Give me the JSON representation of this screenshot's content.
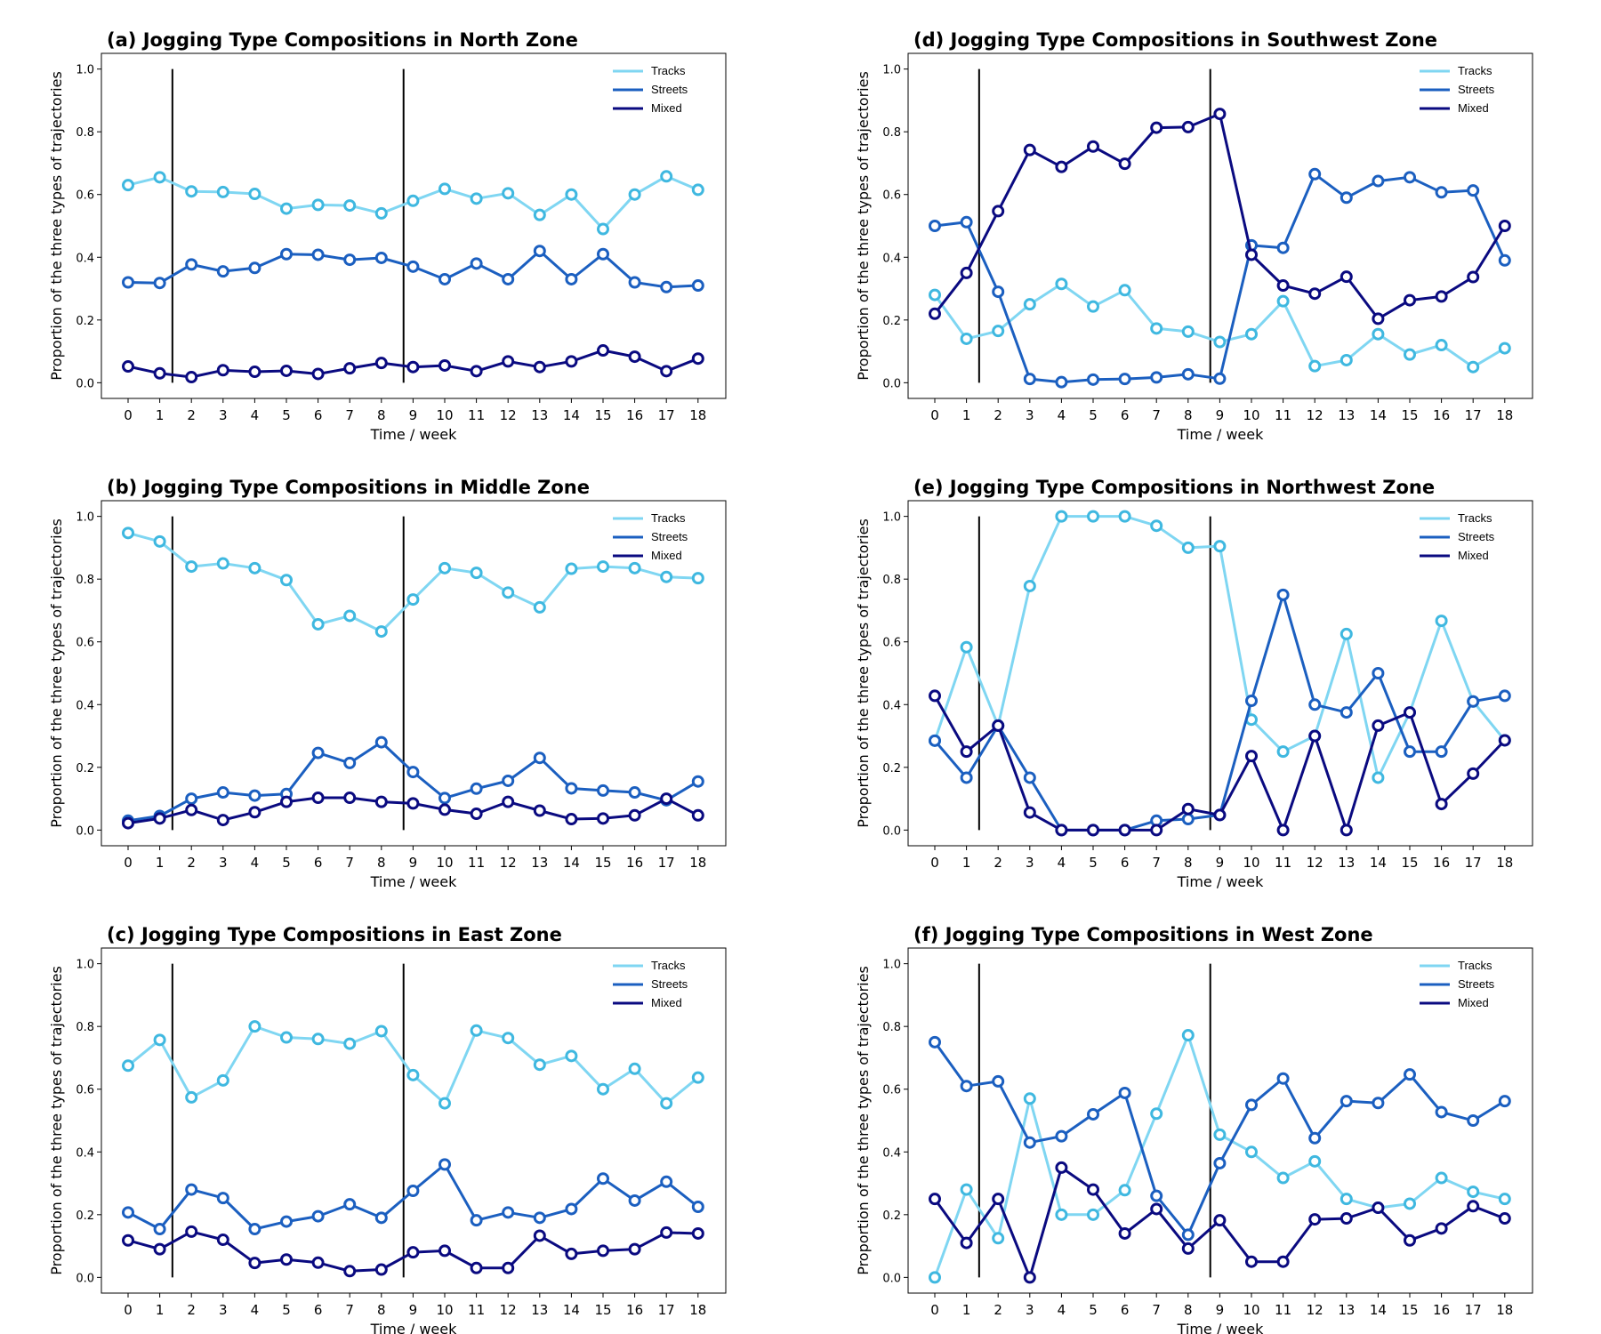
{
  "figure": {
    "xlabel": "Time / week",
    "ylabel": "Proportion of the three types of trajectories",
    "x_ticks": [
      "0",
      "1",
      "2",
      "3",
      "4",
      "5",
      "6",
      "7",
      "8",
      "9",
      "10",
      "11",
      "12",
      "13",
      "14",
      "15",
      "16",
      "17",
      "18"
    ],
    "y_ticks": [
      "0.0",
      "0.2",
      "0.4",
      "0.6",
      "0.8",
      "1.0"
    ],
    "legend_labels": [
      "Tracks",
      "Streets",
      "Mixed"
    ]
  },
  "colors": {
    "tracks_line": "#7fd6f2",
    "tracks_marker": "#3fb8e0",
    "streets": "#1b5fc0",
    "mixed": "#0a0a80",
    "vline": "#000000"
  },
  "chart_data": [
    {
      "panel": "a",
      "type": "line",
      "title_prefix": "(a)",
      "title": "Jogging Type Compositions in North Zone",
      "xlabel": "Time / week",
      "ylabel": "Proportion of the three types of trajectories",
      "x": [
        0,
        1,
        2,
        3,
        4,
        5,
        6,
        7,
        8,
        9,
        10,
        11,
        12,
        13,
        14,
        15,
        16,
        17,
        18
      ],
      "ylim": [
        -0.05,
        1.05
      ],
      "vlines": [
        1.4,
        8.7
      ],
      "legend": "top-right",
      "series": [
        {
          "name": "Tracks",
          "values": [
            0.63,
            0.655,
            0.61,
            0.608,
            0.602,
            0.555,
            0.567,
            0.565,
            0.54,
            0.58,
            0.618,
            0.587,
            0.604,
            0.535,
            0.6,
            0.49,
            0.6,
            0.658,
            0.615
          ]
        },
        {
          "name": "Streets",
          "values": [
            0.32,
            0.318,
            0.377,
            0.355,
            0.366,
            0.41,
            0.408,
            0.392,
            0.398,
            0.37,
            0.33,
            0.38,
            0.33,
            0.42,
            0.33,
            0.41,
            0.32,
            0.305,
            0.31
          ]
        },
        {
          "name": "Mixed",
          "values": [
            0.052,
            0.03,
            0.018,
            0.04,
            0.035,
            0.038,
            0.028,
            0.046,
            0.063,
            0.05,
            0.055,
            0.037,
            0.068,
            0.05,
            0.068,
            0.103,
            0.083,
            0.037,
            0.077
          ]
        }
      ]
    },
    {
      "panel": "b",
      "type": "line",
      "title_prefix": "(b)",
      "title": "Jogging Type Compositions in Middle Zone",
      "xlabel": "Time / week",
      "ylabel": "Proportion of the three types of trajectories",
      "x": [
        0,
        1,
        2,
        3,
        4,
        5,
        6,
        7,
        8,
        9,
        10,
        11,
        12,
        13,
        14,
        15,
        16,
        17,
        18
      ],
      "ylim": [
        -0.05,
        1.05
      ],
      "vlines": [
        1.4,
        8.7
      ],
      "legend": "top-right",
      "series": [
        {
          "name": "Tracks",
          "values": [
            0.947,
            0.92,
            0.84,
            0.85,
            0.835,
            0.797,
            0.656,
            0.683,
            0.633,
            0.735,
            0.835,
            0.82,
            0.757,
            0.71,
            0.833,
            0.84,
            0.835,
            0.807,
            0.803
          ]
        },
        {
          "name": "Streets",
          "values": [
            0.03,
            0.045,
            0.1,
            0.12,
            0.11,
            0.115,
            0.246,
            0.214,
            0.28,
            0.185,
            0.102,
            0.132,
            0.157,
            0.23,
            0.133,
            0.126,
            0.12,
            0.095,
            0.155
          ]
        },
        {
          "name": "Mixed",
          "values": [
            0.022,
            0.037,
            0.064,
            0.032,
            0.057,
            0.09,
            0.103,
            0.103,
            0.09,
            0.085,
            0.065,
            0.052,
            0.09,
            0.062,
            0.035,
            0.037,
            0.047,
            0.1,
            0.047
          ]
        }
      ]
    },
    {
      "panel": "c",
      "type": "line",
      "title_prefix": "(c)",
      "title": "Jogging Type Compositions in East Zone",
      "xlabel": "Time / week",
      "ylabel": "Proportion of the three types of trajectories",
      "x": [
        0,
        1,
        2,
        3,
        4,
        5,
        6,
        7,
        8,
        9,
        10,
        11,
        12,
        13,
        14,
        15,
        16,
        17,
        18
      ],
      "ylim": [
        -0.05,
        1.05
      ],
      "vlines": [
        1.4,
        8.7
      ],
      "legend": "top-right",
      "series": [
        {
          "name": "Tracks",
          "values": [
            0.675,
            0.757,
            0.574,
            0.628,
            0.8,
            0.765,
            0.76,
            0.745,
            0.785,
            0.645,
            0.555,
            0.787,
            0.763,
            0.678,
            0.706,
            0.6,
            0.665,
            0.555,
            0.637
          ]
        },
        {
          "name": "Streets",
          "values": [
            0.207,
            0.154,
            0.28,
            0.253,
            0.154,
            0.178,
            0.195,
            0.233,
            0.19,
            0.276,
            0.36,
            0.182,
            0.207,
            0.19,
            0.218,
            0.315,
            0.245,
            0.305,
            0.225
          ]
        },
        {
          "name": "Mixed",
          "values": [
            0.118,
            0.09,
            0.146,
            0.12,
            0.046,
            0.057,
            0.047,
            0.02,
            0.025,
            0.08,
            0.085,
            0.03,
            0.03,
            0.133,
            0.075,
            0.085,
            0.09,
            0.143,
            0.14
          ]
        }
      ]
    },
    {
      "panel": "d",
      "type": "line",
      "title_prefix": "(d)",
      "title": "Jogging Type Compositions in Southwest Zone",
      "xlabel": "Time / week",
      "ylabel": "Proportion of the three types of trajectories",
      "x": [
        0,
        1,
        2,
        3,
        4,
        5,
        6,
        7,
        8,
        9,
        10,
        11,
        12,
        13,
        14,
        15,
        16,
        17,
        18
      ],
      "ylim": [
        -0.05,
        1.05
      ],
      "vlines": [
        1.4,
        8.7
      ],
      "legend": "top-right",
      "series": [
        {
          "name": "Tracks",
          "values": [
            0.28,
            0.14,
            0.165,
            0.25,
            0.315,
            0.243,
            0.295,
            0.173,
            0.163,
            0.13,
            0.155,
            0.26,
            0.053,
            0.072,
            0.155,
            0.09,
            0.12,
            0.05,
            0.11
          ]
        },
        {
          "name": "Streets",
          "values": [
            0.5,
            0.512,
            0.29,
            0.012,
            0.002,
            0.01,
            0.012,
            0.017,
            0.027,
            0.013,
            0.438,
            0.43,
            0.665,
            0.59,
            0.643,
            0.655,
            0.607,
            0.613,
            0.39
          ]
        },
        {
          "name": "Mixed",
          "values": [
            0.22,
            0.35,
            0.547,
            0.742,
            0.688,
            0.753,
            0.698,
            0.813,
            0.815,
            0.857,
            0.408,
            0.31,
            0.284,
            0.338,
            0.204,
            0.263,
            0.275,
            0.337,
            0.5
          ]
        }
      ]
    },
    {
      "panel": "e",
      "type": "line",
      "title_prefix": "(e)",
      "title": "Jogging Type Compositions in Northwest Zone",
      "xlabel": "Time / week",
      "ylabel": "Proportion of the three types of trajectories",
      "x": [
        0,
        1,
        2,
        3,
        4,
        5,
        6,
        7,
        8,
        9,
        10,
        11,
        12,
        13,
        14,
        15,
        16,
        17,
        18
      ],
      "ylim": [
        -0.05,
        1.05
      ],
      "vlines": [
        1.4,
        8.7
      ],
      "legend": "top-right",
      "series": [
        {
          "name": "Tracks",
          "values": [
            0.285,
            0.583,
            0.333,
            0.778,
            1.0,
            1.0,
            1.0,
            0.97,
            0.9,
            0.905,
            0.352,
            0.25,
            0.3,
            0.625,
            0.167,
            0.375,
            0.667,
            0.41,
            0.286
          ]
        },
        {
          "name": "Streets",
          "values": [
            0.285,
            0.167,
            0.333,
            0.167,
            0.0,
            0.0,
            0.0,
            0.03,
            0.035,
            0.048,
            0.412,
            0.75,
            0.4,
            0.375,
            0.5,
            0.25,
            0.25,
            0.41,
            0.428
          ]
        },
        {
          "name": "Mixed",
          "values": [
            0.428,
            0.25,
            0.333,
            0.056,
            0.0,
            0.0,
            0.0,
            0.0,
            0.067,
            0.048,
            0.236,
            0.0,
            0.3,
            0.0,
            0.333,
            0.375,
            0.083,
            0.18,
            0.286
          ]
        }
      ]
    },
    {
      "panel": "f",
      "type": "line",
      "title_prefix": "(f)",
      "title": "Jogging Type Compositions in West Zone",
      "xlabel": "Time / week",
      "ylabel": "Proportion of the three types of trajectories",
      "x": [
        0,
        1,
        2,
        3,
        4,
        5,
        6,
        7,
        8,
        9,
        10,
        11,
        12,
        13,
        14,
        15,
        16,
        17,
        18
      ],
      "ylim": [
        -0.05,
        1.05
      ],
      "vlines": [
        1.4,
        8.7
      ],
      "legend": "top-right",
      "series": [
        {
          "name": "Tracks",
          "values": [
            0.0,
            0.28,
            0.125,
            0.57,
            0.2,
            0.2,
            0.278,
            0.522,
            0.772,
            0.455,
            0.4,
            0.317,
            0.37,
            0.25,
            0.222,
            0.235,
            0.317,
            0.273,
            0.25
          ]
        },
        {
          "name": "Streets",
          "values": [
            0.75,
            0.61,
            0.625,
            0.43,
            0.45,
            0.52,
            0.588,
            0.26,
            0.136,
            0.364,
            0.55,
            0.634,
            0.444,
            0.562,
            0.556,
            0.647,
            0.527,
            0.5,
            0.562
          ]
        },
        {
          "name": "Mixed",
          "values": [
            0.25,
            0.11,
            0.25,
            0.0,
            0.35,
            0.28,
            0.14,
            0.218,
            0.092,
            0.182,
            0.05,
            0.05,
            0.185,
            0.188,
            0.222,
            0.118,
            0.156,
            0.227,
            0.188
          ]
        }
      ]
    }
  ]
}
